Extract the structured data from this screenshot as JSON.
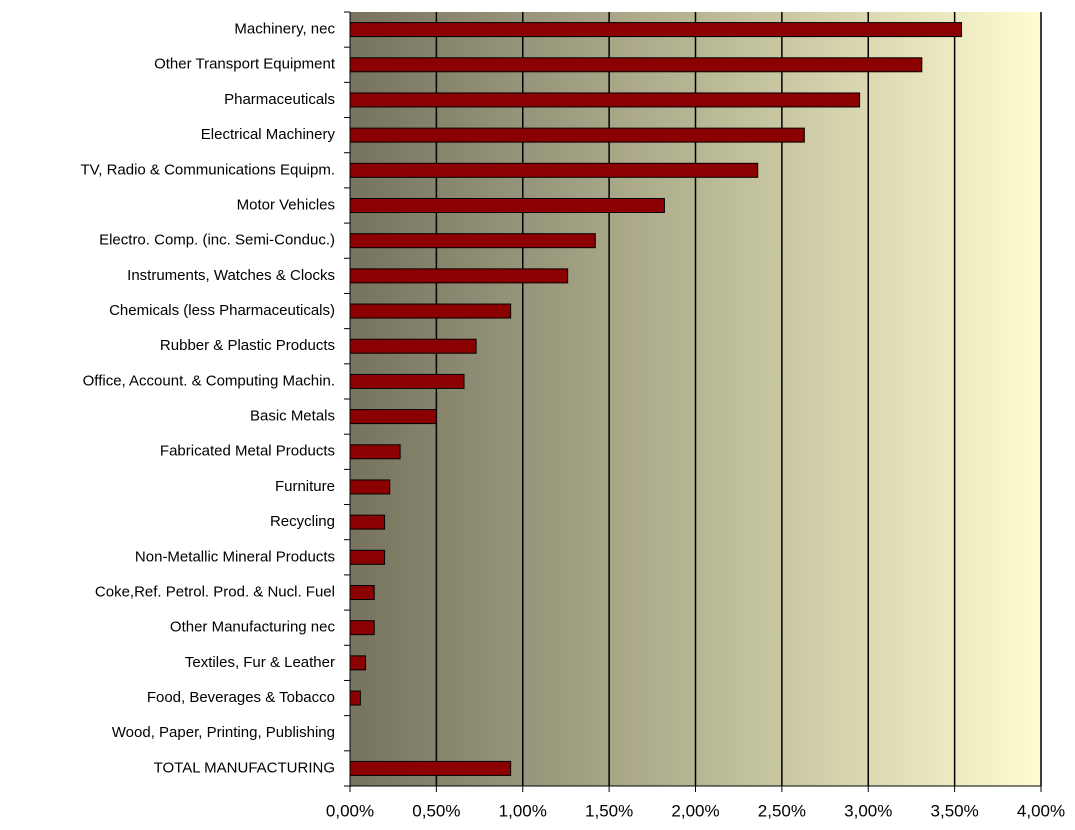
{
  "chart_data": {
    "type": "barh",
    "categories": [
      "Machinery, nec",
      "Other Transport Equipment",
      "Pharmaceuticals",
      "Electrical Machinery",
      "TV, Radio & Communications Equipm.",
      "Motor Vehicles",
      "Electro. Comp. (inc. Semi-Conduc.)",
      "Instruments, Watches & Clocks",
      "Chemicals (less Pharmaceuticals)",
      "Rubber & Plastic Products",
      "Office, Account. & Computing Machin.",
      "Basic Metals",
      "Fabricated Metal Products",
      "Furniture",
      "Recycling",
      "Non-Metallic Mineral Products",
      "Coke,Ref. Petrol. Prod. & Nucl. Fuel",
      "Other Manufacturing nec",
      "Textiles, Fur & Leather",
      "Food, Beverages & Tobacco",
      "Wood, Paper, Printing, Publishing",
      "TOTAL MANUFACTURING"
    ],
    "values": [
      3.54,
      3.31,
      2.95,
      2.63,
      2.36,
      1.82,
      1.42,
      1.26,
      0.93,
      0.73,
      0.66,
      0.5,
      0.29,
      0.23,
      0.2,
      0.2,
      0.14,
      0.14,
      0.09,
      0.06,
      0,
      0.93
    ],
    "color": "#8b0000",
    "xlim": [
      0,
      4
    ],
    "xticks": [
      {
        "value": 0,
        "label": "0,00%"
      },
      {
        "value": 0.5,
        "label": "0,50%"
      },
      {
        "value": 1,
        "label": "1,00%"
      },
      {
        "value": 1.5,
        "label": "1,50%"
      },
      {
        "value": 2,
        "label": "2,00%"
      },
      {
        "value": 2.5,
        "label": "2,50%"
      },
      {
        "value": 3,
        "label": "3,00%"
      },
      {
        "value": 3.5,
        "label": "3,50%"
      },
      {
        "value": 4,
        "label": "4,00%"
      }
    ],
    "grid": true
  }
}
